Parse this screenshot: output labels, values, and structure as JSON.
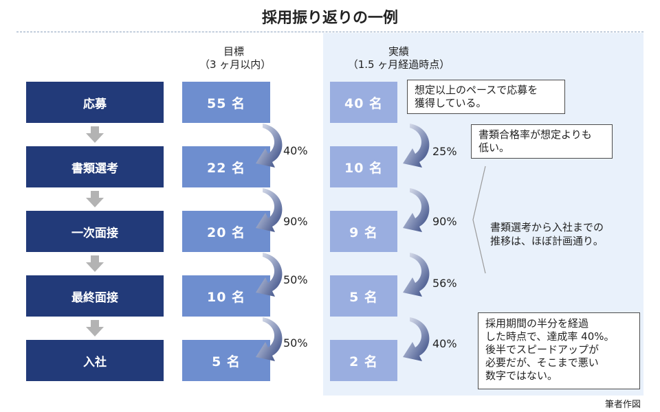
{
  "title": "採用振り返りの一例",
  "columns": {
    "target_line1": "目標",
    "target_line2": "（3 ヶ月以内）",
    "actual_line1": "実績",
    "actual_line2": "（1.5 ヶ月経過時点）"
  },
  "stages": [
    {
      "label": "応募",
      "target": "55 名",
      "actual": "40 名"
    },
    {
      "label": "書類選考",
      "target": "22 名",
      "actual": "10 名"
    },
    {
      "label": "一次面接",
      "target": "20 名",
      "actual": "9 名"
    },
    {
      "label": "最終面接",
      "target": "10 名",
      "actual": "5 名"
    },
    {
      "label": "入社",
      "target": "5 名",
      "actual": "2 名"
    }
  ],
  "target_rates": [
    "40%",
    "90%",
    "50%",
    "50%"
  ],
  "actual_rates": [
    "25%",
    "90%",
    "56%",
    "40%"
  ],
  "callouts": {
    "c1_line1": "想定以上のペースで応募を",
    "c1_line2": "獲得している。",
    "c2_line1": "書類合格率が想定よりも",
    "c2_line2": "低い。",
    "c3_line1": "書類選考から入社までの",
    "c3_line2": "推移は、ほぼ計画通り。",
    "c4_line1": "採用期間の半分を経過",
    "c4_line2": "した時点で、達成率 40%。",
    "c4_line3": "後半でスピードアップが",
    "c4_line4": "必要だが、そこまで悪い",
    "c4_line5": "数字ではない。"
  },
  "credit": "筆者作図",
  "colors": {
    "stage": "#223a79",
    "target_box": "#6e8ecf",
    "actual_box": "#9aaee0",
    "actual_bg": "#e9f1fb",
    "arrow": "#8a96b8"
  }
}
